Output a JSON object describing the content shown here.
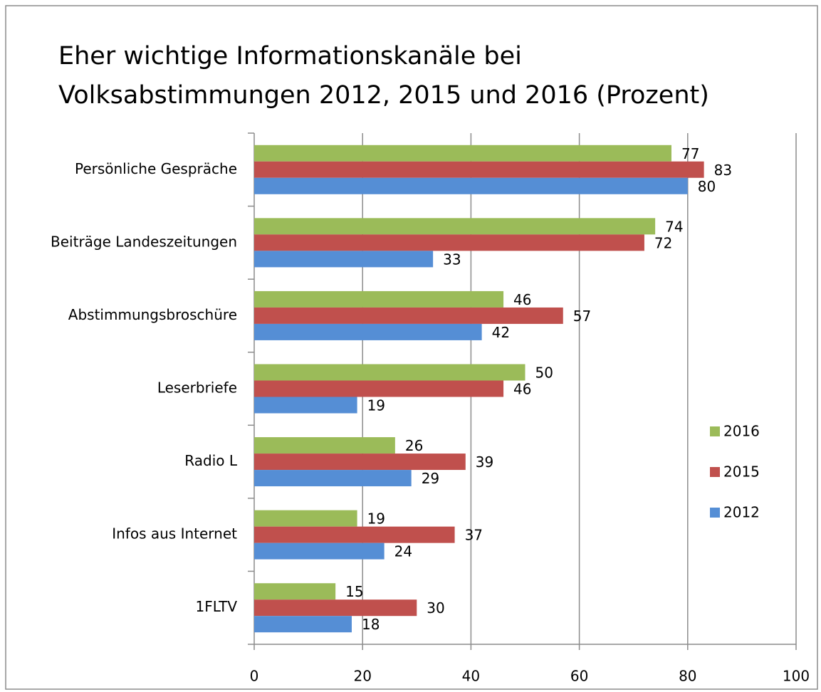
{
  "chart_data": {
    "type": "hbar",
    "title_lines": [
      "Eher wichtige Informationskanäle bei",
      "Volksabstimmungen 2012, 2015 und 2016 (Prozent)"
    ],
    "categories": [
      "Persönliche Gespräche",
      "Beiträge Landeszeitungen",
      "Abstimmungsbroschüre",
      "Leserbriefe",
      "Radio L",
      "Infos aus Internet",
      "1FLTV"
    ],
    "series": [
      {
        "name": "2016",
        "color": "#9bbb59",
        "values": [
          77,
          74,
          46,
          50,
          26,
          19,
          15
        ]
      },
      {
        "name": "2015",
        "color": "#c0504d",
        "values": [
          83,
          72,
          57,
          46,
          39,
          37,
          30
        ]
      },
      {
        "name": "2012",
        "color": "#558ed5",
        "values": [
          80,
          33,
          42,
          19,
          29,
          24,
          18
        ]
      }
    ],
    "xlim": [
      0,
      100
    ],
    "xticks": [
      0,
      20,
      40,
      60,
      80,
      100
    ],
    "grid": true,
    "legend": "right"
  }
}
